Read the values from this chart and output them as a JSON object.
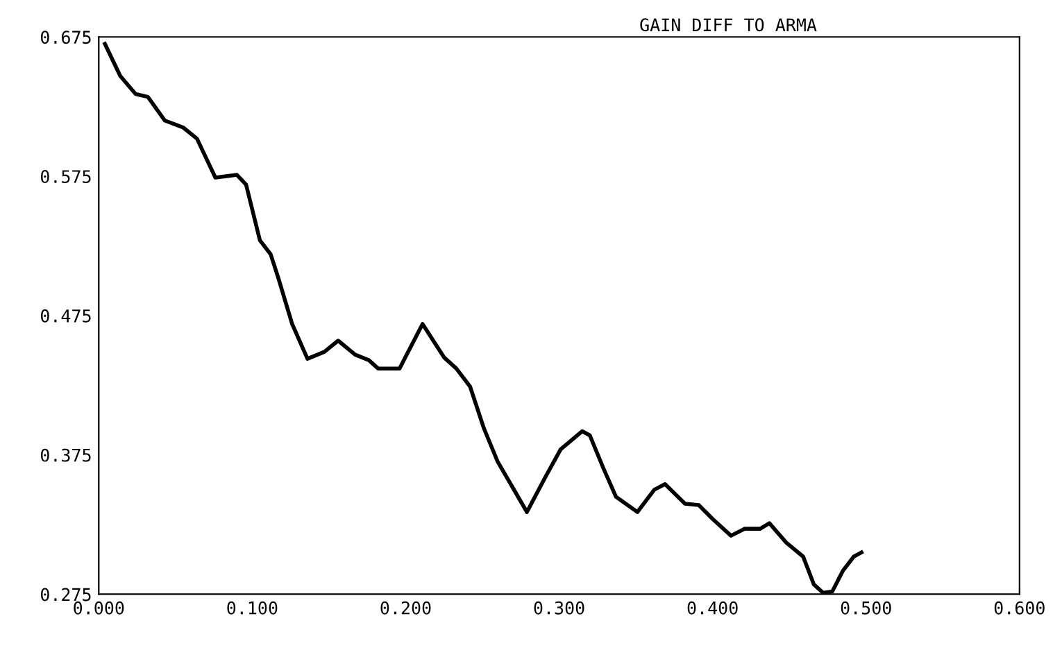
{
  "chart_data": {
    "type": "line",
    "title": "GAIN DIFF TO ARMA",
    "x": [
      0.004,
      0.014,
      0.024,
      0.032,
      0.043,
      0.055,
      0.064,
      0.076,
      0.09,
      0.096,
      0.105,
      0.112,
      0.117,
      0.126,
      0.136,
      0.147,
      0.156,
      0.167,
      0.176,
      0.182,
      0.196,
      0.211,
      0.225,
      0.233,
      0.242,
      0.251,
      0.26,
      0.279,
      0.291,
      0.301,
      0.315,
      0.32,
      0.329,
      0.337,
      0.351,
      0.362,
      0.369,
      0.382,
      0.391,
      0.4,
      0.412,
      0.421,
      0.431,
      0.437,
      0.448,
      0.459,
      0.466,
      0.472,
      0.478,
      0.485,
      0.492,
      0.497
    ],
    "series": [
      {
        "color": "#000000",
        "values": [
          0.67,
          0.647,
          0.634,
          0.632,
          0.615,
          0.61,
          0.602,
          0.574,
          0.576,
          0.569,
          0.529,
          0.519,
          0.502,
          0.469,
          0.444,
          0.449,
          0.457,
          0.447,
          0.443,
          0.437,
          0.437,
          0.469,
          0.445,
          0.437,
          0.424,
          0.394,
          0.37,
          0.334,
          0.359,
          0.379,
          0.392,
          0.389,
          0.365,
          0.345,
          0.334,
          0.35,
          0.354,
          0.34,
          0.339,
          0.329,
          0.317,
          0.322,
          0.322,
          0.326,
          0.312,
          0.302,
          0.282,
          0.276,
          0.277,
          0.292,
          0.302,
          0.305
        ]
      }
    ],
    "xlim": [
      0.0,
      0.6
    ],
    "ylim": [
      0.275,
      0.675
    ],
    "xticks": [
      {
        "value": 0.0,
        "label": "0.000"
      },
      {
        "value": 0.1,
        "label": "0.100"
      },
      {
        "value": 0.2,
        "label": "0.200"
      },
      {
        "value": 0.3,
        "label": "0.300"
      },
      {
        "value": 0.4,
        "label": "0.400"
      },
      {
        "value": 0.5,
        "label": "0.500"
      },
      {
        "value": 0.6,
        "label": "0.600"
      }
    ],
    "yticks": [
      0.275,
      0.375,
      0.475,
      0.575,
      0.675
    ],
    "grid": false,
    "marker": "none",
    "line_style": "solid"
  }
}
